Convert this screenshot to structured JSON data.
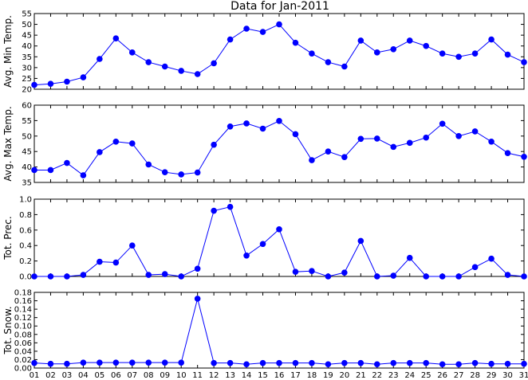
{
  "chart_data": {
    "type": "line",
    "title": "Data for Jan-2011",
    "x_tick_labels": [
      "01",
      "02",
      "03",
      "04",
      "05",
      "06",
      "07",
      "08",
      "09",
      "10",
      "11",
      "12",
      "13",
      "14",
      "15",
      "16",
      "17",
      "18",
      "19",
      "20",
      "21",
      "22",
      "23",
      "24",
      "25",
      "26",
      "27",
      "28",
      "29",
      "30",
      "31"
    ],
    "x": [
      1,
      2,
      3,
      4,
      5,
      6,
      7,
      8,
      9,
      10,
      11,
      12,
      13,
      14,
      15,
      16,
      17,
      18,
      19,
      20,
      21,
      22,
      23,
      24,
      25,
      26,
      27,
      28,
      29,
      30,
      31
    ],
    "xlim": [
      1,
      31
    ],
    "color": "#0000ff",
    "grid": false,
    "legend": "none",
    "panels": [
      {
        "ylabel": "Avg. Min Temp.",
        "ylim": [
          20,
          55
        ],
        "yticks": [
          "20",
          "25",
          "30",
          "35",
          "40",
          "45",
          "50",
          "55"
        ],
        "ytick_values": [
          20,
          25,
          30,
          35,
          40,
          45,
          50,
          55
        ],
        "values": [
          22,
          22.5,
          23.5,
          25.5,
          34,
          43.5,
          37,
          32.5,
          30.5,
          28.5,
          27,
          32,
          43,
          48,
          46.5,
          50,
          41.5,
          36.5,
          32.5,
          30.5,
          42.5,
          37,
          38.5,
          42.5,
          40,
          36.5,
          35,
          36.5,
          43,
          36,
          32.5
        ]
      },
      {
        "ylabel": "Avg. Max Temp.",
        "ylim": [
          35,
          60
        ],
        "yticks": [
          "35",
          "40",
          "45",
          "50",
          "55",
          "60"
        ],
        "ytick_values": [
          35,
          40,
          45,
          50,
          55,
          60
        ],
        "values": [
          39,
          39,
          41.3,
          37.3,
          44.8,
          48.2,
          47.6,
          40.8,
          38.3,
          37.6,
          38.2,
          47.2,
          53.1,
          54.1,
          52.4,
          54.9,
          50.6,
          42.2,
          45,
          43.2,
          49.1,
          49.2,
          46.5,
          47.8,
          49.5,
          54,
          50,
          51.5,
          48.2,
          44.5,
          43.3
        ]
      },
      {
        "ylabel": "Tot. Prec.",
        "ylim": [
          0,
          1.0
        ],
        "yticks": [
          "0.0",
          "0.2",
          "0.4",
          "0.6",
          "0.8",
          "1.0"
        ],
        "ytick_values": [
          0,
          0.2,
          0.4,
          0.6,
          0.8,
          1.0
        ],
        "values": [
          0,
          0,
          0,
          0.02,
          0.19,
          0.18,
          0.4,
          0.02,
          0.03,
          0,
          0.1,
          0.85,
          0.9,
          0.27,
          0.42,
          0.61,
          0.06,
          0.07,
          0,
          0.05,
          0.46,
          0,
          0.01,
          0.24,
          0,
          0,
          0,
          0.12,
          0.23,
          0.02,
          0
        ]
      },
      {
        "ylabel": "Tot. Snow.",
        "ylim": [
          0,
          0.18
        ],
        "yticks": [
          "0.00",
          "0.02",
          "0.04",
          "0.06",
          "0.08",
          "0.10",
          "0.12",
          "0.14",
          "0.16",
          "0.18"
        ],
        "ytick_values": [
          0,
          0.02,
          0.04,
          0.06,
          0.08,
          0.1,
          0.12,
          0.14,
          0.16,
          0.18
        ],
        "values": [
          0.012,
          0.01,
          0.01,
          0.013,
          0.013,
          0.013,
          0.013,
          0.013,
          0.013,
          0.013,
          0.165,
          0.012,
          0.012,
          0.009,
          0.012,
          0.012,
          0.012,
          0.012,
          0.009,
          0.012,
          0.012,
          0.009,
          0.012,
          0.012,
          0.012,
          0.009,
          0.009,
          0.012,
          0.01,
          0.01,
          0.01
        ]
      }
    ]
  }
}
